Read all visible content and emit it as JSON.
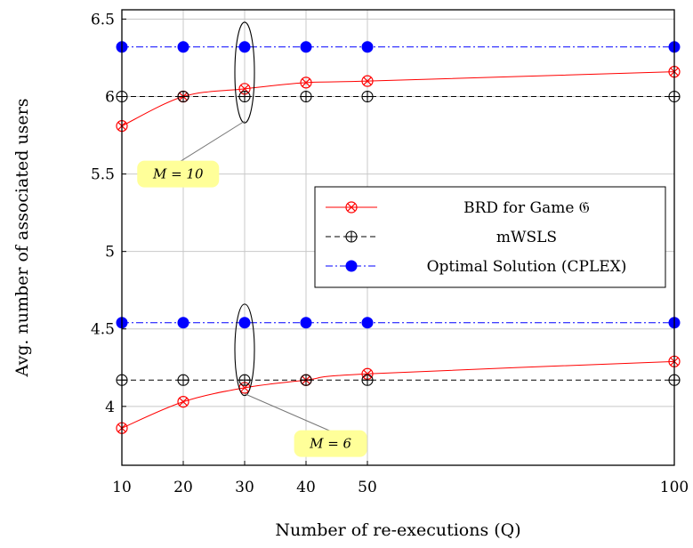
{
  "chart_data": {
    "type": "line",
    "xlabel": "Number of re-executions (Q)",
    "ylabel": "Avg. number of associated users",
    "x": [
      10,
      20,
      30,
      40,
      50,
      100
    ],
    "xlim": [
      10,
      100
    ],
    "ylim": [
      3.62,
      6.56
    ],
    "xticks": [
      10,
      20,
      30,
      40,
      50,
      100
    ],
    "yticks": [
      4,
      4.5,
      5,
      5.5,
      6,
      6.5
    ],
    "ytick_labels": [
      "4",
      "4.5",
      "5",
      "5.5",
      "6",
      "6.5"
    ],
    "grid": true,
    "legend_position": "right",
    "legend": [
      {
        "label": "BRD for Game 𝔊",
        "series": "brd"
      },
      {
        "label": "mWSLS",
        "series": "mwsls"
      },
      {
        "label": "Optimal Solution (CPLEX)",
        "series": "opt"
      }
    ],
    "series": [
      {
        "key": "brd",
        "group": "M = 10",
        "values": [
          5.81,
          6.0,
          6.05,
          6.09,
          6.1,
          6.16
        ],
        "color": "#ff0000",
        "style": "solid",
        "marker": "circle-x"
      },
      {
        "key": "mwsls",
        "group": "M = 10",
        "values": [
          6.0,
          6.0,
          6.0,
          6.0,
          6.0,
          6.0
        ],
        "color": "#000000",
        "style": "dashed",
        "marker": "circle-plus"
      },
      {
        "key": "opt",
        "group": "M = 10",
        "values": [
          6.32,
          6.32,
          6.32,
          6.32,
          6.32,
          6.32
        ],
        "color": "#0000ff",
        "style": "dashdot",
        "marker": "filled-circle"
      },
      {
        "key": "brd",
        "group": "M = 6",
        "values": [
          3.86,
          4.03,
          4.12,
          4.17,
          4.21,
          4.29
        ],
        "color": "#ff0000",
        "style": "solid",
        "marker": "circle-x"
      },
      {
        "key": "mwsls",
        "group": "M = 6",
        "values": [
          4.17,
          4.17,
          4.17,
          4.17,
          4.17,
          4.17
        ],
        "color": "#000000",
        "style": "dashed",
        "marker": "circle-plus"
      },
      {
        "key": "opt",
        "group": "M = 6",
        "values": [
          4.54,
          4.54,
          4.54,
          4.54,
          4.54,
          4.54
        ],
        "color": "#0000ff",
        "style": "dashdot",
        "marker": "filled-circle"
      }
    ],
    "annotations": [
      {
        "text": "M = 10",
        "ellipse_x": 30,
        "ellipse_y_range": [
          5.83,
          6.48
        ],
        "label_at": [
          12.5,
          5.5
        ],
        "fill": "#ffff99"
      },
      {
        "text": "M = 6",
        "ellipse_x": 30,
        "ellipse_y_range": [
          4.07,
          4.66
        ],
        "label_at": [
          44,
          3.76
        ],
        "fill": "#ffff99"
      }
    ]
  }
}
